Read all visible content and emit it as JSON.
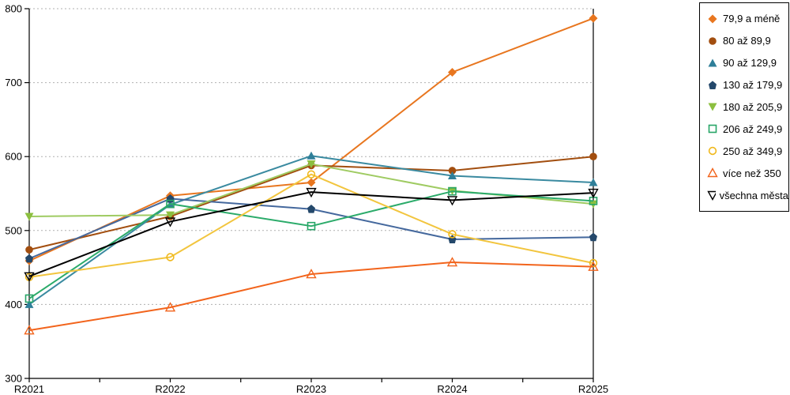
{
  "chart_data": {
    "type": "line",
    "title": "",
    "xlabel": "",
    "ylabel": "",
    "categories": [
      "R2021",
      "R2022",
      "R2023",
      "R2024",
      "R2025"
    ],
    "ylim": [
      300,
      800
    ],
    "y_ticks": [
      300,
      400,
      500,
      600,
      700,
      800
    ],
    "grid": "horizontal-dotted",
    "gridline_color": "#b0b0b0",
    "axis_color": "#000000",
    "legend_position": "right",
    "series": [
      {
        "name": "79,9 a méně",
        "marker": "diamond-filled",
        "color": "#E8761F",
        "line_color": "#E8761F",
        "values": [
          459,
          547,
          565,
          714,
          787
        ]
      },
      {
        "name": "80 až 89,9",
        "marker": "circle-filled",
        "color": "#A24E0F",
        "line_color": "#A24E0F",
        "values": [
          474,
          519,
          588,
          581,
          600
        ]
      },
      {
        "name": "90 až 129,9",
        "marker": "triangle-up-filled",
        "color": "#2F7F99",
        "line_color": "#3A8AA0",
        "values": [
          400,
          535,
          601,
          574,
          565
        ]
      },
      {
        "name": "130 až 179,9",
        "marker": "pentagon-filled",
        "color": "#24486B",
        "line_color": "#44689D",
        "values": [
          462,
          543,
          529,
          488,
          491
        ]
      },
      {
        "name": "180 až 205,9",
        "marker": "triangle-down-filled",
        "color": "#8CBF3F",
        "line_color": "#9FCB62",
        "values": [
          519,
          521,
          590,
          554,
          536
        ]
      },
      {
        "name": "206 až 249,9",
        "marker": "square-open",
        "color": "#27A567",
        "line_color": "#2BAB6A",
        "values": [
          408,
          536,
          506,
          553,
          540
        ]
      },
      {
        "name": "250 až 349,9",
        "marker": "circle-open",
        "color": "#F0B81B",
        "line_color": "#F2C53E",
        "values": [
          437,
          464,
          576,
          495,
          456
        ]
      },
      {
        "name": "více než 350",
        "marker": "triangle-up-open",
        "color": "#F2641C",
        "line_color": "#F2641C",
        "values": [
          365,
          396,
          441,
          457,
          451
        ]
      },
      {
        "name": "všechna města",
        "marker": "triangle-down-open",
        "color": "#000000",
        "line_color": "#000000",
        "values": [
          438,
          512,
          552,
          541,
          551
        ]
      }
    ]
  }
}
